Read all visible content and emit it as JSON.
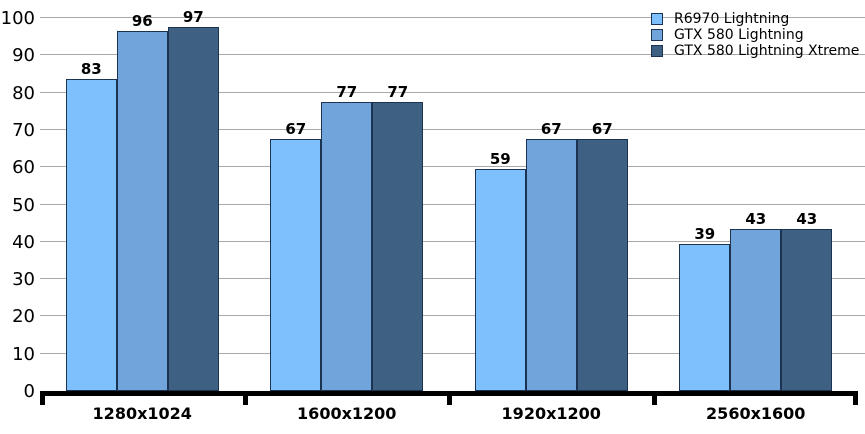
{
  "chart_data": {
    "type": "bar",
    "title": "",
    "xlabel": "",
    "ylabel": "",
    "categories": [
      "1280x1024",
      "1600x1200",
      "1920x1200",
      "2560x1600"
    ],
    "series": [
      {
        "name": "R6970 Lightning",
        "color": "#7EBFFD",
        "values": [
          83,
          67,
          59,
          39
        ]
      },
      {
        "name": "GTX 580 Lightning",
        "color": "#70A4DB",
        "values": [
          96,
          77,
          67,
          43
        ]
      },
      {
        "name": "GTX 580 Lightning Xtreme",
        "color": "#3E6183",
        "values": [
          97,
          77,
          67,
          43
        ]
      }
    ],
    "ylim": [
      0,
      100
    ],
    "yticks": [
      0,
      10,
      20,
      30,
      40,
      50,
      60,
      70,
      80,
      90,
      100
    ],
    "grid": "horizontal",
    "legend_position": "top-right",
    "colors": {
      "bar_border": "#1B3350",
      "gridline": "#A9A9A9",
      "axis": "#000000",
      "text": "#000000",
      "background": "#FFFFFF"
    }
  }
}
